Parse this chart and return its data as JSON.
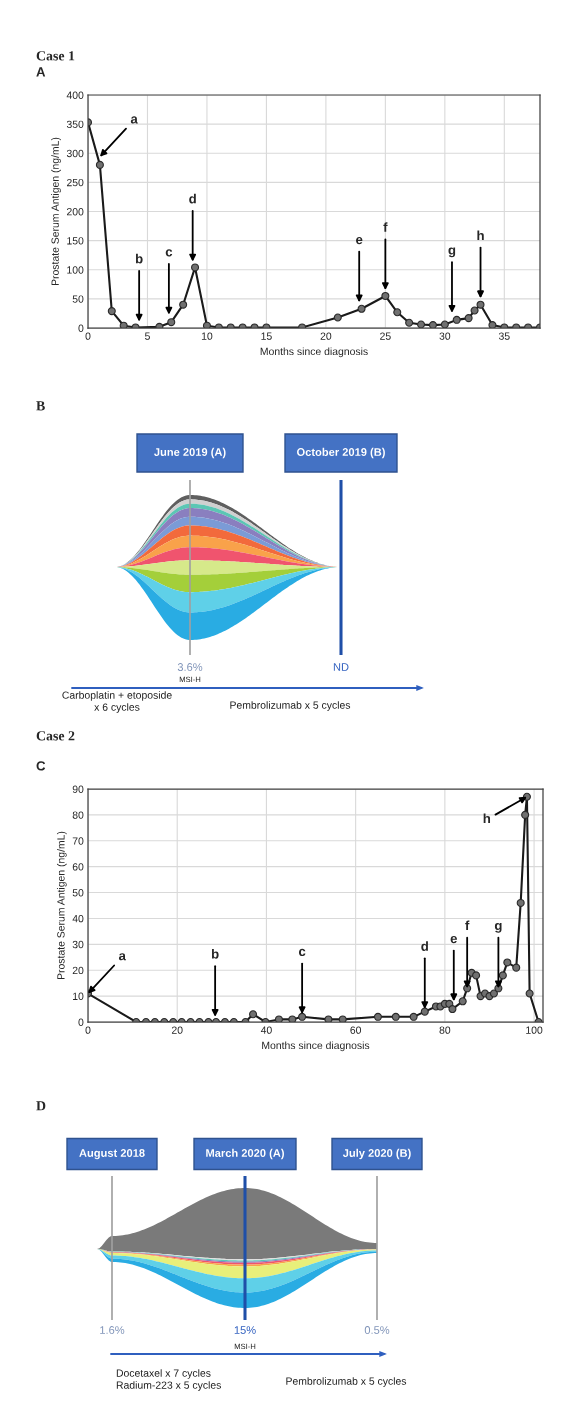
{
  "chart_data": [
    {
      "type": "line",
      "title": "Case 1",
      "subtitle": "A",
      "xlabel": "Months since diagnosis",
      "ylabel": "Prostate Serum Antigen (ng/mL)",
      "xlim": [
        0,
        38
      ],
      "xticks": [
        0,
        5,
        10,
        15,
        20,
        25,
        30,
        35
      ],
      "ylim": [
        0,
        400
      ],
      "yticks": [
        0,
        50,
        100,
        150,
        200,
        250,
        300,
        350,
        400
      ],
      "grid": true,
      "marker": "circle",
      "line_style": "solid",
      "series": [
        {
          "color": "#1a1a1a",
          "x": [
            0,
            1,
            2,
            3,
            4,
            6,
            7,
            8,
            9,
            10,
            11,
            12,
            13,
            14,
            15,
            18,
            21,
            23,
            25,
            26,
            27,
            28,
            29,
            30,
            31,
            32,
            32.5,
            33,
            34,
            35,
            36,
            37,
            38
          ],
          "values": [
            353,
            280,
            29,
            4,
            1,
            2,
            10,
            40,
            104,
            4,
            1,
            1,
            1,
            1,
            1,
            1,
            18,
            33,
            55,
            27,
            9,
            6,
            5,
            6,
            14,
            17,
            30,
            40,
            5,
            1,
            1,
            1,
            1
          ]
        }
      ],
      "annotations": [
        {
          "text": "a",
          "x": 1,
          "y": 294
        },
        {
          "text": "b",
          "x": 4.3,
          "y": 11
        },
        {
          "text": "c",
          "x": 6.8,
          "y": 23
        },
        {
          "text": "d",
          "x": 8.8,
          "y": 114
        },
        {
          "text": "e",
          "x": 22.8,
          "y": 44
        },
        {
          "text": "f",
          "x": 25,
          "y": 65
        },
        {
          "text": "g",
          "x": 30.6,
          "y": 26
        },
        {
          "text": "h",
          "x": 33,
          "y": 51
        }
      ]
    },
    {
      "type": "other",
      "title": "B",
      "categories": [
        "June 2019 (A)",
        "October 2019 (B)"
      ],
      "annotations": [
        {
          "text": "3.6%",
          "x": "June 2019 (A)"
        },
        {
          "text": "ND",
          "x": "October 2019 (B)"
        },
        "MSI-H",
        "Carboplatin + etoposide\nx 6 cycles",
        "Pembrolizumab x 5 cycles"
      ]
    },
    {
      "type": "line",
      "title": "Case 2",
      "subtitle": "C",
      "xlabel": "Months since diagnosis",
      "ylabel": "Prostate Serum Antigen (ng/mL)",
      "xlim": [
        0,
        102
      ],
      "xticks": [
        0,
        20,
        40,
        60,
        80,
        100
      ],
      "ylim": [
        0,
        90
      ],
      "yticks": [
        0,
        10,
        20,
        30,
        40,
        50,
        60,
        70,
        80,
        90
      ],
      "grid": true,
      "marker": "circle",
      "line_style": "solid",
      "series": [
        {
          "color": "#1a1a1a",
          "x": [
            0,
            10.8,
            13,
            15,
            17.1,
            19.1,
            21,
            23,
            25,
            27,
            28.7,
            30.7,
            32.7,
            35.3,
            37,
            39.8,
            42.8,
            45.8,
            48,
            53.9,
            57.1,
            65,
            69,
            73,
            75.5,
            78,
            79,
            80,
            81,
            81.7,
            84,
            85,
            86,
            87,
            88,
            89,
            90,
            91,
            92,
            93,
            94,
            96,
            97,
            98,
            98.4,
            99,
            101
          ],
          "values": [
            11,
            0,
            0,
            0,
            0,
            0,
            0,
            0,
            0,
            0,
            0,
            0,
            0,
            0,
            3,
            0,
            1,
            1,
            2,
            1,
            1,
            2,
            2,
            2,
            4,
            6,
            6,
            7,
            7,
            5,
            8,
            13,
            19,
            18,
            10,
            11,
            10,
            11,
            13,
            18,
            23,
            21,
            46,
            80,
            87,
            11,
            0
          ]
        }
      ],
      "annotations": [
        {
          "text": "a",
          "x": 0,
          "y": 11
        },
        {
          "text": "b",
          "x": 28.5,
          "y": 2
        },
        {
          "text": "c",
          "x": 48,
          "y": 3
        },
        {
          "text": "d",
          "x": 75.5,
          "y": 5
        },
        {
          "text": "e",
          "x": 82,
          "y": 8
        },
        {
          "text": "f",
          "x": 85,
          "y": 13
        },
        {
          "text": "g",
          "x": 92,
          "y": 13
        },
        {
          "text": "h",
          "x": 98.4,
          "y": 87
        }
      ]
    },
    {
      "type": "other",
      "title": "D",
      "categories": [
        "August 2018",
        "March 2020 (A)",
        "July 2020 (B)"
      ],
      "annotations": [
        {
          "text": "1.6%",
          "x": "August 2018"
        },
        {
          "text": "15%",
          "x": "March 2020 (A)"
        },
        {
          "text": "0.5%",
          "x": "July 2020 (B)"
        },
        "MSI-H",
        "Docetaxel x 7 cycles\nRadium-223 x 5 cycles",
        "Pembrolizumab x 5 cycles"
      ]
    }
  ]
}
